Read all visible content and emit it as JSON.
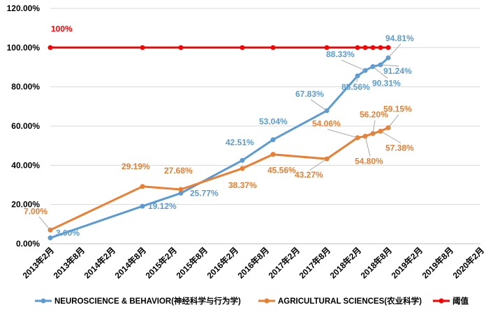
{
  "chart_data": {
    "type": "line",
    "categories": [
      "2013年2月",
      "2013年8月",
      "2014年2月",
      "2014年8月",
      "2015年2月",
      "2015年8月",
      "2016年2月",
      "2016年8月",
      "2017年2月",
      "2017年8月",
      "2018年2月",
      "2018年8月",
      "2019年2月",
      "2019年8月",
      "2020年2月"
    ],
    "ylim": [
      0,
      120
    ],
    "yticks": [
      "0.00%",
      "20.00%",
      "40.00%",
      "60.00%",
      "80.00%",
      "100.00%",
      "120.00%"
    ],
    "grid": true,
    "legend_position": "bottom",
    "series": [
      {
        "name": "NEUROSCIENCE & BEHAVIOR(神经科学与行为学)",
        "color": "#5B9BD5",
        "points": [
          {
            "t": 0.0,
            "value": 3.0,
            "label": "3.00%"
          },
          {
            "t": 3.0,
            "value": 19.12,
            "label": "19.12%"
          },
          {
            "t": 4.25,
            "value": 25.77,
            "label": "25.77%"
          },
          {
            "t": 6.25,
            "value": 42.51,
            "label": "42.51%"
          },
          {
            "t": 7.25,
            "value": 53.04,
            "label": "53.04%"
          },
          {
            "t": 9.0,
            "value": 67.83,
            "label": "67.83%"
          },
          {
            "t": 10.0,
            "value": 85.56,
            "label": "85.56%"
          },
          {
            "t": 10.25,
            "value": 88.33,
            "label": "88.33%"
          },
          {
            "t": 10.5,
            "value": 90.31,
            "label": "90.31%"
          },
          {
            "t": 10.75,
            "value": 91.24,
            "label": "91.24%"
          },
          {
            "t": 11.0,
            "value": 94.81,
            "label": "94.81%"
          }
        ]
      },
      {
        "name": "AGRICULTURAL SCIENCES(农业科学)",
        "color": "#ED7D31",
        "points": [
          {
            "t": 0.0,
            "value": 7.0,
            "label": "7.00%"
          },
          {
            "t": 3.0,
            "value": 29.19,
            "label": "29.19%"
          },
          {
            "t": 4.25,
            "value": 27.68,
            "label": "27.68%"
          },
          {
            "t": 6.25,
            "value": 38.37,
            "label": "38.37%"
          },
          {
            "t": 7.25,
            "value": 45.56,
            "label": "45.56%"
          },
          {
            "t": 9.0,
            "value": 43.27,
            "label": "43.27%"
          },
          {
            "t": 10.0,
            "value": 54.06,
            "label": "54.06%"
          },
          {
            "t": 10.25,
            "value": 54.8,
            "label": "54.80%"
          },
          {
            "t": 10.5,
            "value": 56.2,
            "label": "56.20%"
          },
          {
            "t": 10.75,
            "value": 57.38,
            "label": "57.38%"
          },
          {
            "t": 11.0,
            "value": 59.15,
            "label": "59.15%"
          }
        ]
      },
      {
        "name": "阈值",
        "color": "#FF0000",
        "points": [
          {
            "t": 0.0,
            "value": 100,
            "label": "100%"
          },
          {
            "t": 3.0,
            "value": 100
          },
          {
            "t": 4.25,
            "value": 100
          },
          {
            "t": 6.25,
            "value": 100
          },
          {
            "t": 7.25,
            "value": 100
          },
          {
            "t": 9.0,
            "value": 100
          },
          {
            "t": 10.0,
            "value": 100
          },
          {
            "t": 10.25,
            "value": 100
          },
          {
            "t": 10.5,
            "value": 100
          },
          {
            "t": 10.75,
            "value": 100
          },
          {
            "t": 11.0,
            "value": 100
          }
        ]
      }
    ]
  }
}
